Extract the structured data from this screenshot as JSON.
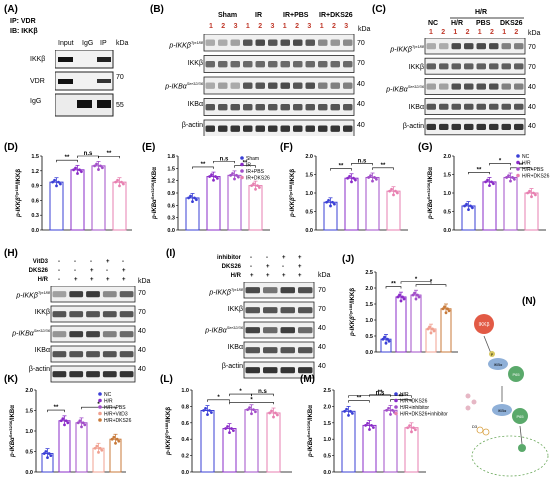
{
  "panels": {
    "A": {
      "label": "(A)",
      "ip_line": "IP: VDR",
      "ib_line": "IB: IKKβ",
      "columns": [
        "Input",
        "IgG",
        "IP"
      ],
      "kda": "kDa",
      "rows": [
        "IKKβ",
        "VDR",
        "IgG"
      ],
      "markers": [
        "70",
        "55"
      ]
    },
    "B": {
      "label": "(B)",
      "groups": [
        "Sham",
        "IR",
        "IR+PBS",
        "IR+DKS26"
      ],
      "lane_numbers": [
        "1",
        "2",
        "3",
        "1",
        "2",
        "3",
        "1",
        "2",
        "3",
        "1",
        "2",
        "3"
      ],
      "kda": "kDa",
      "rows": [
        "p-IKKβ",
        "IKKβ",
        "p-IKBα",
        "IKBα",
        "β-actin"
      ],
      "row_sup": [
        "Tyr188",
        "",
        "Ser32/36",
        "",
        ""
      ],
      "markers": [
        "70",
        "70",
        "40",
        "40",
        "40"
      ]
    },
    "C": {
      "label": "(C)",
      "groups": [
        "NC",
        "H/R",
        "PBS",
        "DKS26"
      ],
      "super_group": "H/R",
      "lane_numbers": [
        "1",
        "2",
        "1",
        "2",
        "1",
        "2",
        "1",
        "2"
      ],
      "kda": "kDa",
      "rows": [
        "p-IKKβ",
        "IKKβ",
        "p-IKBα",
        "IKBα",
        "β-actin"
      ],
      "row_sup": [
        "Tyr188",
        "",
        "Ser32/36",
        "",
        ""
      ],
      "markers": [
        "70",
        "70",
        "40",
        "40",
        "40"
      ]
    },
    "H": {
      "label": "(H)",
      "treat_rows": [
        "VitD3",
        "DKS26",
        "H/R"
      ],
      "treat_signs": [
        [
          "-",
          "-",
          "-",
          "+",
          "-"
        ],
        [
          "-",
          "-",
          "+",
          "-",
          "+"
        ],
        [
          "-",
          "+",
          "+",
          "+",
          "+"
        ]
      ],
      "kda": "kDa",
      "rows": [
        "p-IKKβ",
        "IKKβ",
        "p-IKBα",
        "IKBα",
        "β-actin"
      ],
      "row_sup": [
        "Tyr188",
        "",
        "Ser32/36",
        "",
        ""
      ],
      "markers": [
        "70",
        "70",
        "40",
        "40",
        "40"
      ]
    },
    "I": {
      "label": "(I)",
      "treat_rows": [
        "inhibitor",
        "DKS26",
        "H/R"
      ],
      "treat_signs": [
        [
          "-",
          "-",
          "+",
          "+"
        ],
        [
          "-",
          "+",
          "-",
          "+"
        ],
        [
          "+",
          "+",
          "+",
          "+"
        ]
      ],
      "kda": "kDa",
      "rows": [
        "p-IKKβ",
        "IKKβ",
        "p-IKBα",
        "IKBα",
        "β-actin"
      ],
      "row_sup": [
        "Tyr188",
        "",
        "Ser32/36",
        "",
        ""
      ],
      "markers": [
        "70",
        "70",
        "40",
        "40",
        "40"
      ]
    },
    "N": {
      "label": "(N)",
      "nodes": [
        "IKKβ",
        "IKBα",
        "P65",
        "IKBα",
        "P65"
      ],
      "p_tag": "P",
      "vitd_tag": "D3"
    }
  },
  "chart_data": [
    {
      "id": "D",
      "type": "bar",
      "panel": "(D)",
      "ylabel": "p-IKKβ",
      "ylabel_sup": "Tyr188",
      "ylabel_tail": "/IKKβ",
      "ylim": [
        0,
        1.5
      ],
      "yticks": [
        "0.0",
        "0.3",
        "0.6",
        "0.9",
        "1.2",
        "1.5"
      ],
      "categories": [
        "Sham",
        "IR",
        "IR+PBS",
        "IR+DKS26"
      ],
      "values": [
        0.97,
        1.22,
        1.3,
        0.97
      ],
      "colors": [
        "#3a3fd6",
        "#8a2bc8",
        "#a24ec9",
        "#e77fb0"
      ],
      "sig": [
        [
          "**",
          0,
          1
        ],
        [
          "n.s",
          1,
          2
        ],
        [
          "**",
          2,
          3
        ]
      ]
    },
    {
      "id": "E",
      "type": "bar",
      "panel": "(E)",
      "ylabel": "p-IKBα",
      "ylabel_sup": "Ser32/36",
      "ylabel_tail": "/IKBα",
      "ylim": [
        0,
        1.8
      ],
      "yticks": [
        "0.0",
        "0.3",
        "0.6",
        "0.9",
        "1.2",
        "1.5",
        "1.8"
      ],
      "categories": [
        "Sham",
        "IR",
        "IR+PBS",
        "IR+DKS26"
      ],
      "values": [
        0.78,
        1.3,
        1.33,
        1.08
      ],
      "colors": [
        "#3a3fd6",
        "#8a2bc8",
        "#a24ec9",
        "#e77fb0"
      ],
      "legend": [
        "Sham",
        "IR",
        "IR+PBS",
        "IR+DKS26"
      ],
      "sig": [
        [
          "**",
          0,
          1
        ],
        [
          "n.s",
          1,
          2
        ],
        [
          "**",
          2,
          3
        ]
      ]
    },
    {
      "id": "F",
      "type": "bar",
      "panel": "(F)",
      "ylabel": "p-IKKβ",
      "ylabel_sup": "Tyr188",
      "ylabel_tail": "/IKKβ",
      "ylim": [
        0,
        2.0
      ],
      "yticks": [
        "0.0",
        "0.5",
        "1.0",
        "1.5",
        "2.0"
      ],
      "categories": [
        "NC",
        "H/R",
        "H/R+PBS",
        "H/R+DKS26"
      ],
      "values": [
        0.75,
        1.4,
        1.42,
        1.05
      ],
      "colors": [
        "#3a3fd6",
        "#8a2bc8",
        "#a24ec9",
        "#e77fb0"
      ],
      "sig": [
        [
          "**",
          0,
          1
        ],
        [
          "n.s",
          1,
          2
        ],
        [
          "**",
          2,
          3
        ]
      ]
    },
    {
      "id": "G",
      "type": "bar",
      "panel": "(G)",
      "ylabel": "p-IKBα",
      "ylabel_sup": "Ser32/36",
      "ylabel_tail": "/IKBα",
      "ylim": [
        0,
        2.0
      ],
      "yticks": [
        "0.0",
        "0.5",
        "1.0",
        "1.5",
        "2.0"
      ],
      "categories": [
        "NC",
        "H/R",
        "H/R+PBS",
        "H/R+DKS26"
      ],
      "values": [
        0.65,
        1.3,
        1.42,
        1.0
      ],
      "colors": [
        "#3a3fd6",
        "#8a2bc8",
        "#a24ec9",
        "#e77fb0"
      ],
      "legend": [
        "NC",
        "H/R",
        "H/R+PBS",
        "H/R+DKS26"
      ],
      "sig": [
        [
          "**",
          0,
          1
        ],
        [
          "*",
          1,
          2
        ],
        [
          "**",
          2,
          3
        ]
      ]
    },
    {
      "id": "J",
      "type": "bar",
      "panel": "(J)",
      "ylabel": "p-IKKβ",
      "ylabel_sup": "Tyr188",
      "ylabel_tail": "/IKKβ",
      "ylim": [
        0,
        2.5
      ],
      "yticks": [
        "0.0",
        "0.5",
        "1.0",
        "1.5",
        "2.0",
        "2.5"
      ],
      "categories": [
        "NC",
        "H/R",
        "H/R+PBS",
        "H/R+VitD3",
        "H/R+DKS26"
      ],
      "values": [
        0.4,
        1.72,
        1.78,
        0.72,
        1.35
      ],
      "colors": [
        "#3a3fd6",
        "#8a2bc8",
        "#a24ec9",
        "#f0a090",
        "#c87a3a"
      ],
      "sig": [
        [
          "**",
          0,
          1
        ],
        [
          "*",
          1,
          3
        ],
        [
          "*",
          2,
          4
        ]
      ]
    },
    {
      "id": "K",
      "type": "bar",
      "panel": "(K)",
      "ylabel": "p-IKBα",
      "ylabel_sup": "Ser32/36",
      "ylabel_tail": "/IKBα",
      "ylim": [
        0,
        2.0
      ],
      "yticks": [
        "0.0",
        "0.5",
        "1.0",
        "1.5",
        "2.0"
      ],
      "categories": [
        "NC",
        "H/R",
        "H/R+PBS",
        "H/R+VitD3",
        "H/R+DKS26"
      ],
      "values": [
        0.45,
        1.25,
        1.2,
        0.58,
        0.8
      ],
      "colors": [
        "#3a3fd6",
        "#8a2bc8",
        "#a24ec9",
        "#f0a090",
        "#c87a3a"
      ],
      "legend": [
        "NC",
        "H/R",
        "H/R+PBS",
        "H/R+VitD3",
        "H/R+DKS26"
      ],
      "sig": [
        [
          "**",
          0,
          1
        ],
        [
          "*",
          2,
          4
        ]
      ]
    },
    {
      "id": "L",
      "type": "bar",
      "panel": "(L)",
      "ylabel": "p-IKKβ",
      "ylabel_sup": "Tyr188",
      "ylabel_tail": "/IKKβ",
      "ylim": [
        0,
        1.0
      ],
      "yticks": [
        "0.0",
        "0.2",
        "0.4",
        "0.6",
        "0.8",
        "1.0"
      ],
      "categories": [
        "H/R",
        "H/R+DKS26",
        "H/R+inhibitor",
        "H/R+DKS26+inhibitor"
      ],
      "values": [
        0.75,
        0.53,
        0.76,
        0.72
      ],
      "colors": [
        "#3a3fd6",
        "#8a2bc8",
        "#a24ec9",
        "#e77fb0"
      ],
      "sig": [
        [
          "*",
          0,
          1
        ],
        [
          "*",
          1,
          2
        ],
        [
          "*",
          1,
          3
        ],
        [
          "n.s",
          2,
          3
        ]
      ]
    },
    {
      "id": "M",
      "type": "bar",
      "panel": "(M)",
      "ylabel": "p-IKBα",
      "ylabel_sup": "Ser32/36",
      "ylabel_tail": "/IKBα",
      "ylim": [
        0,
        2.5
      ],
      "yticks": [
        "0.0",
        "0.5",
        "1.0",
        "1.5",
        "2.0",
        "2.5"
      ],
      "categories": [
        "H/R",
        "H/R+DKS26",
        "H/R+inhibitor",
        "H/R+DKS26+inhibitor"
      ],
      "values": [
        1.85,
        1.42,
        1.88,
        1.35
      ],
      "colors": [
        "#3a3fd6",
        "#8a2bc8",
        "#a24ec9",
        "#e77fb0"
      ],
      "legend": [
        "H/R",
        "H/R+DKS26",
        "H/R+inhibitor",
        "H/R+DKS26+inhibitor"
      ],
      "sig": [
        [
          "**",
          0,
          1
        ],
        [
          "**",
          1,
          2
        ],
        [
          "**",
          2,
          3
        ],
        [
          "n.s",
          0,
          3
        ]
      ]
    }
  ]
}
